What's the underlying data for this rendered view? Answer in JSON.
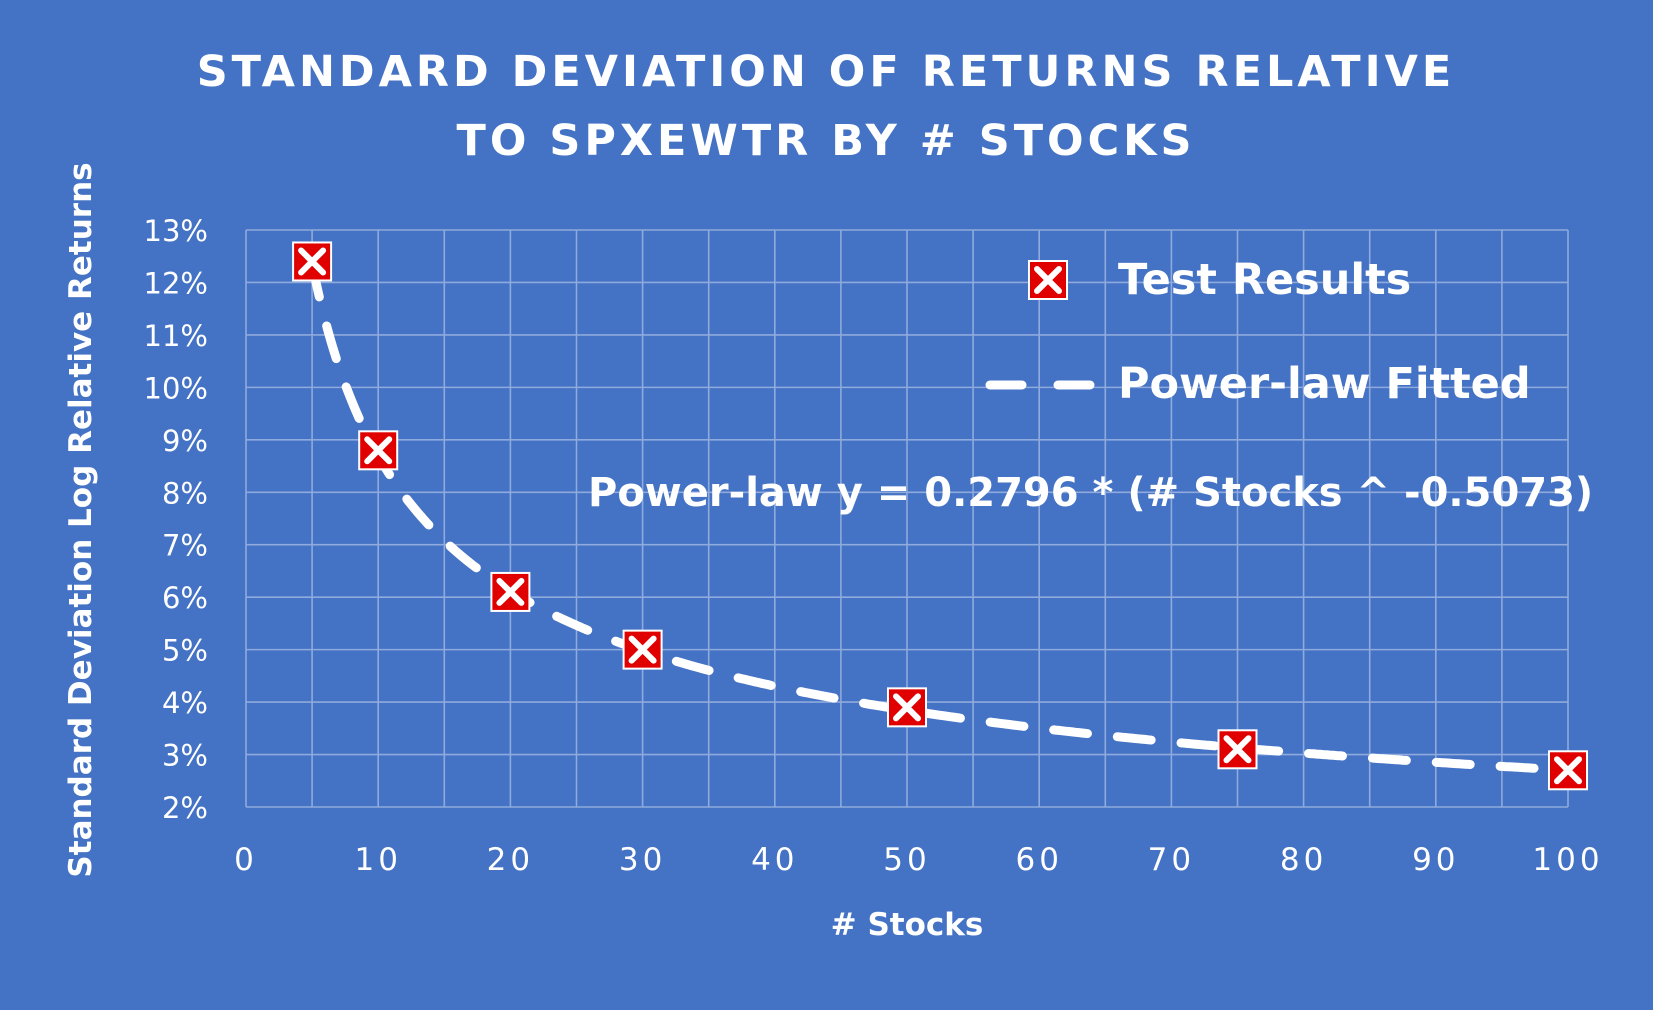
{
  "chart_data": {
    "type": "scatter",
    "title_lines": [
      "STANDARD DEVIATION OF RETURNS RELATIVE",
      "TO SPXEWTR BY # STOCKS"
    ],
    "xlabel": "# Stocks",
    "ylabel": "Standard Deviation Log Relative Returns",
    "xlim": [
      0,
      100
    ],
    "ylim": [
      0.02,
      0.13
    ],
    "x_ticks": [
      0,
      10,
      20,
      30,
      40,
      50,
      60,
      70,
      80,
      90,
      100
    ],
    "x_tick_labels": [
      "0",
      "10",
      "20",
      "30",
      "40",
      "50",
      "60",
      "70",
      "80",
      "90",
      "100"
    ],
    "y_ticks": [
      0.02,
      0.03,
      0.04,
      0.05,
      0.06,
      0.07,
      0.08,
      0.09,
      0.1,
      0.11,
      0.12,
      0.13
    ],
    "y_tick_labels": [
      "2%",
      "3%",
      "4%",
      "5%",
      "6%",
      "7%",
      "8%",
      "9%",
      "10%",
      "11%",
      "12%",
      "13%"
    ],
    "grid": true,
    "series": [
      {
        "name": "Test Results",
        "style": "marker-x",
        "x": [
          5,
          10,
          20,
          30,
          50,
          75,
          100
        ],
        "y": [
          0.124,
          0.088,
          0.061,
          0.05,
          0.039,
          0.031,
          0.027
        ]
      },
      {
        "name": "Power-law Fitted",
        "style": "dashed-line",
        "formula": {
          "coefficient": 0.2796,
          "exponent": -0.5073
        },
        "x_range": [
          5,
          100
        ]
      }
    ],
    "annotation": "Power-law y = 0.2796 * (# Stocks ^ -0.5073)",
    "legend_position": "top-right",
    "colors": {
      "background": "#4472C4",
      "text": "#FFFFFF",
      "grid": "#8FAADC",
      "marker_fill": "#E00000",
      "marker_cross": "#FFFFFF",
      "fit_line": "#FFFFFF"
    }
  }
}
